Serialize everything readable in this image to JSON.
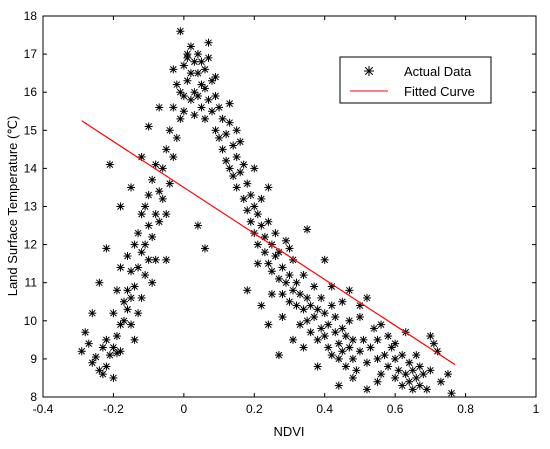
{
  "chart_data": {
    "type": "scatter",
    "xlabel": "NDVI",
    "ylabel": "Land Surface Temperature (℃)",
    "xlim": [
      -0.4,
      1
    ],
    "ylim": [
      8,
      18
    ],
    "xticks": [
      "-0.4",
      "-0.2",
      "0",
      "0.2",
      "0.4",
      "0.6",
      "0.8",
      "1"
    ],
    "yticks": [
      "8",
      "9",
      "10",
      "11",
      "12",
      "13",
      "14",
      "15",
      "16",
      "17",
      "18"
    ],
    "grid": false,
    "legend_position": "top-right",
    "series": [
      {
        "name": "Actual Data",
        "marker": "asterisk",
        "color": "#000000",
        "points": [
          [
            -0.29,
            9.2
          ],
          [
            -0.27,
            9.4
          ],
          [
            -0.26,
            8.9
          ],
          [
            -0.25,
            9.05
          ],
          [
            -0.24,
            8.7
          ],
          [
            -0.23,
            8.6
          ],
          [
            -0.23,
            9.3
          ],
          [
            -0.22,
            9.5
          ],
          [
            -0.22,
            8.8
          ],
          [
            -0.21,
            9.1
          ],
          [
            -0.2,
            8.5
          ],
          [
            -0.2,
            9.3
          ],
          [
            -0.2,
            10.2
          ],
          [
            -0.19,
            9.6
          ],
          [
            -0.19,
            9.15
          ],
          [
            -0.19,
            10.8
          ],
          [
            -0.18,
            9.9
          ],
          [
            -0.18,
            11.4
          ],
          [
            -0.18,
            9.2
          ],
          [
            -0.17,
            10.5
          ],
          [
            -0.17,
            10.0
          ],
          [
            -0.16,
            10.8
          ],
          [
            -0.16,
            11.7
          ],
          [
            -0.16,
            10.3
          ],
          [
            -0.15,
            11.3
          ],
          [
            -0.15,
            9.9
          ],
          [
            -0.15,
            10.6
          ],
          [
            -0.14,
            12.0
          ],
          [
            -0.14,
            10.9
          ],
          [
            -0.14,
            9.5
          ],
          [
            -0.13,
            11.4
          ],
          [
            -0.13,
            10.2
          ],
          [
            -0.13,
            12.3
          ],
          [
            -0.12,
            11.8
          ],
          [
            -0.12,
            10.6
          ],
          [
            -0.12,
            12.8
          ],
          [
            -0.11,
            11.2
          ],
          [
            -0.11,
            13.0
          ],
          [
            -0.11,
            12.0
          ],
          [
            -0.1,
            11.6
          ],
          [
            -0.1,
            12.5
          ],
          [
            -0.1,
            13.3
          ],
          [
            -0.09,
            12.2
          ],
          [
            -0.09,
            11.0
          ],
          [
            -0.09,
            13.7
          ],
          [
            -0.08,
            12.8
          ],
          [
            -0.08,
            14.1
          ],
          [
            -0.08,
            11.6
          ],
          [
            -0.07,
            13.4
          ],
          [
            -0.07,
            12.6
          ],
          [
            -0.06,
            14.0
          ],
          [
            -0.06,
            13.2
          ],
          [
            -0.05,
            12.8
          ],
          [
            -0.05,
            14.5
          ],
          [
            -0.04,
            13.6
          ],
          [
            -0.04,
            15.0
          ],
          [
            -0.03,
            14.3
          ],
          [
            -0.03,
            15.6
          ],
          [
            -0.02,
            14.8
          ],
          [
            -0.02,
            16.2
          ],
          [
            -0.01,
            15.3
          ],
          [
            -0.01,
            16.0
          ],
          [
            0.0,
            15.9
          ],
          [
            0.0,
            16.7
          ],
          [
            0.0,
            15.5
          ],
          [
            0.01,
            16.9
          ],
          [
            0.01,
            16.3
          ],
          [
            0.01,
            17.0
          ],
          [
            0.02,
            16.5
          ],
          [
            0.02,
            15.8
          ],
          [
            0.02,
            17.2
          ],
          [
            0.03,
            16.0
          ],
          [
            0.03,
            16.8
          ],
          [
            0.03,
            15.4
          ],
          [
            0.04,
            16.5
          ],
          [
            0.04,
            17.0
          ],
          [
            0.04,
            15.9
          ],
          [
            0.05,
            16.2
          ],
          [
            0.05,
            16.8
          ],
          [
            0.05,
            15.6
          ],
          [
            0.06,
            16.6
          ],
          [
            0.06,
            15.3
          ],
          [
            0.06,
            16.1
          ],
          [
            0.07,
            15.8
          ],
          [
            0.07,
            16.9
          ],
          [
            0.08,
            15.5
          ],
          [
            0.08,
            16.3
          ],
          [
            0.09,
            15.0
          ],
          [
            0.09,
            15.9
          ],
          [
            0.1,
            14.8
          ],
          [
            0.1,
            15.6
          ],
          [
            0.11,
            14.5
          ],
          [
            0.11,
            15.3
          ],
          [
            0.12,
            14.9
          ],
          [
            0.12,
            14.2
          ],
          [
            0.13,
            15.2
          ],
          [
            0.13,
            14.0
          ],
          [
            0.14,
            14.6
          ],
          [
            0.14,
            13.8
          ],
          [
            0.15,
            14.3
          ],
          [
            0.15,
            13.5
          ],
          [
            0.16,
            14.7
          ],
          [
            0.16,
            13.9
          ],
          [
            0.17,
            13.2
          ],
          [
            0.17,
            14.1
          ],
          [
            0.18,
            13.6
          ],
          [
            0.18,
            12.9
          ],
          [
            0.19,
            13.3
          ],
          [
            0.19,
            12.6
          ],
          [
            0.2,
            13.0
          ],
          [
            0.2,
            12.3
          ],
          [
            0.21,
            12.8
          ],
          [
            0.21,
            12.0
          ],
          [
            0.22,
            12.5
          ],
          [
            0.22,
            13.2
          ],
          [
            0.23,
            12.2
          ],
          [
            0.23,
            11.8
          ],
          [
            0.24,
            12.6
          ],
          [
            0.24,
            11.5
          ],
          [
            0.25,
            12.0
          ],
          [
            0.25,
            11.3
          ],
          [
            0.26,
            11.7
          ],
          [
            0.26,
            12.3
          ],
          [
            0.27,
            11.1
          ],
          [
            0.27,
            11.8
          ],
          [
            0.28,
            10.7
          ],
          [
            0.28,
            11.4
          ],
          [
            0.29,
            11.0
          ],
          [
            0.29,
            12.1
          ],
          [
            0.3,
            10.5
          ],
          [
            0.3,
            11.2
          ],
          [
            0.31,
            10.8
          ],
          [
            0.31,
            11.6
          ],
          [
            0.32,
            10.4
          ],
          [
            0.32,
            11.0
          ],
          [
            0.33,
            10.7
          ],
          [
            0.33,
            9.9
          ],
          [
            0.34,
            10.3
          ],
          [
            0.34,
            11.2
          ],
          [
            0.35,
            10.0
          ],
          [
            0.35,
            10.6
          ],
          [
            0.36,
            9.7
          ],
          [
            0.36,
            10.4
          ],
          [
            0.37,
            10.9
          ],
          [
            0.37,
            10.1
          ],
          [
            0.38,
            9.5
          ],
          [
            0.38,
            10.3
          ],
          [
            0.39,
            9.8
          ],
          [
            0.39,
            10.6
          ],
          [
            0.4,
            9.6
          ],
          [
            0.4,
            10.2
          ],
          [
            0.41,
            9.3
          ],
          [
            0.41,
            9.9
          ],
          [
            0.42,
            10.4
          ],
          [
            0.42,
            9.1
          ],
          [
            0.43,
            9.7
          ],
          [
            0.43,
            10.1
          ],
          [
            0.44,
            9.4
          ],
          [
            0.44,
            9.0
          ],
          [
            0.45,
            9.8
          ],
          [
            0.45,
            9.2
          ],
          [
            0.46,
            8.8
          ],
          [
            0.46,
            9.6
          ],
          [
            0.47,
            9.3
          ],
          [
            0.47,
            10.0
          ],
          [
            0.48,
            9.0
          ],
          [
            0.48,
            9.5
          ],
          [
            0.49,
            8.7
          ],
          [
            0.5,
            9.2
          ],
          [
            0.5,
            10.4
          ],
          [
            0.51,
            9.5
          ],
          [
            0.52,
            8.9
          ],
          [
            0.52,
            10.6
          ],
          [
            0.53,
            9.3
          ],
          [
            0.54,
            9.8
          ],
          [
            0.55,
            9.0
          ],
          [
            0.55,
            9.5
          ],
          [
            0.56,
            8.6
          ],
          [
            0.57,
            9.1
          ],
          [
            0.58,
            9.6
          ],
          [
            0.58,
            8.8
          ],
          [
            0.59,
            9.3
          ],
          [
            0.6,
            8.5
          ],
          [
            0.6,
            9.0
          ],
          [
            0.61,
            8.7
          ],
          [
            0.62,
            8.3
          ],
          [
            0.62,
            9.1
          ],
          [
            0.63,
            8.6
          ],
          [
            0.64,
            8.4
          ],
          [
            0.64,
            8.9
          ],
          [
            0.65,
            8.2
          ],
          [
            0.65,
            8.7
          ],
          [
            0.66,
            8.5
          ],
          [
            0.67,
            8.3
          ],
          [
            0.67,
            8.8
          ],
          [
            0.68,
            8.6
          ],
          [
            0.69,
            8.2
          ],
          [
            0.7,
            8.7
          ],
          [
            0.7,
            9.6
          ],
          [
            0.71,
            9.4
          ],
          [
            0.72,
            9.2
          ],
          [
            0.73,
            8.4
          ],
          [
            0.75,
            8.6
          ],
          [
            0.76,
            8.1
          ],
          [
            0.66,
            9.1
          ],
          [
            0.55,
            8.4
          ],
          [
            0.52,
            8.2
          ],
          [
            0.48,
            8.5
          ],
          [
            0.44,
            8.3
          ],
          [
            0.38,
            8.8
          ],
          [
            0.34,
            9.3
          ],
          [
            0.31,
            9.5
          ],
          [
            0.27,
            9.1
          ],
          [
            0.24,
            9.9
          ],
          [
            0.22,
            10.4
          ],
          [
            0.21,
            11.5
          ],
          [
            0.25,
            10.7
          ],
          [
            0.28,
            10.1
          ],
          [
            0.18,
            10.8
          ],
          [
            0.3,
            11.9
          ],
          [
            0.24,
            13.5
          ],
          [
            0.2,
            14.0
          ],
          [
            0.15,
            15.0
          ],
          [
            0.13,
            15.7
          ],
          [
            0.09,
            16.4
          ],
          [
            0.07,
            17.3
          ],
          [
            -0.01,
            17.6
          ],
          [
            -0.03,
            16.6
          ],
          [
            -0.07,
            15.6
          ],
          [
            -0.1,
            15.1
          ],
          [
            -0.12,
            14.3
          ],
          [
            -0.15,
            13.5
          ],
          [
            -0.18,
            13.0
          ],
          [
            -0.21,
            14.1
          ],
          [
            -0.22,
            11.9
          ],
          [
            -0.24,
            11.0
          ],
          [
            -0.26,
            10.2
          ],
          [
            -0.28,
            9.7
          ],
          [
            0.35,
            12.4
          ],
          [
            0.4,
            11.6
          ],
          [
            0.42,
            10.9
          ],
          [
            0.45,
            10.5
          ],
          [
            0.47,
            10.8
          ],
          [
            0.5,
            10.1
          ],
          [
            0.56,
            9.9
          ],
          [
            0.6,
            9.4
          ],
          [
            0.63,
            9.7
          ],
          [
            0.06,
            11.9
          ],
          [
            0.04,
            12.5
          ],
          [
            -0.05,
            11.6
          ]
        ]
      },
      {
        "name": "Fitted Curve",
        "color": "#ff0000",
        "x": [
          -0.29,
          0.77
        ],
        "y": [
          15.25,
          8.85
        ]
      }
    ]
  }
}
